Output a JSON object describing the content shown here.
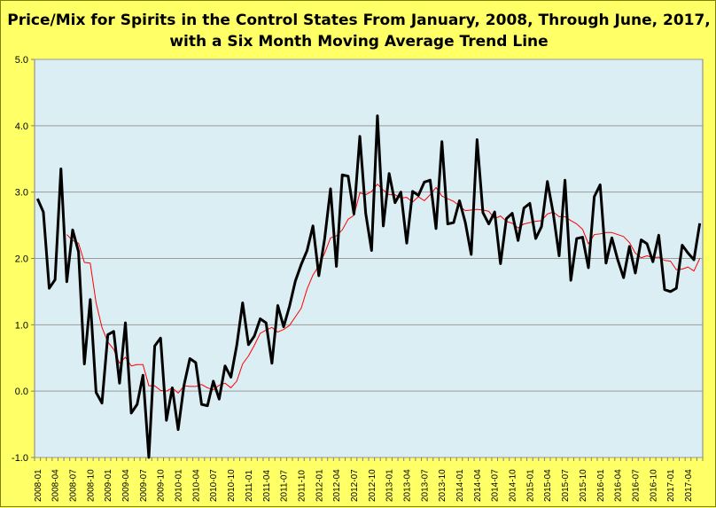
{
  "chart_data": {
    "type": "line",
    "title": "Price/Mix for Spirits in the Control States From January, 2008, Through June, 2017,",
    "subtitle": "with a Six Month Moving Average Trend Line",
    "ylim": [
      -1.0,
      5.0
    ],
    "yticks": [
      "-1.0",
      "0.0",
      "1.0",
      "2.0",
      "3.0",
      "4.0",
      "5.0"
    ],
    "x_tick_labels": [
      "2008-01",
      "2008-04",
      "2008-07",
      "2008-10",
      "2009-01",
      "2009-04",
      "2009-07",
      "2009-10",
      "2010-01",
      "2010-04",
      "2010-07",
      "2010-10",
      "2011-01",
      "2011-04",
      "2011-07",
      "2011-10",
      "2012-01",
      "2012-04",
      "2012-07",
      "2012-10",
      "2013-01",
      "2013-04",
      "2013-07",
      "2013-10",
      "2014-01",
      "2014-04",
      "2014-07",
      "2014-10",
      "2015-01",
      "2015-04",
      "2015-07",
      "2015-10",
      "2016-01",
      "2016-04",
      "2016-07",
      "2016-10",
      "2017-01",
      "2017-04"
    ],
    "grid": true,
    "plot_background": "#daeef3",
    "page_background": "#ffff66",
    "series": [
      {
        "color": "#000000",
        "values": [
          2.9,
          2.7,
          1.55,
          1.68,
          3.35,
          1.65,
          2.43,
          2.1,
          0.41,
          1.38,
          -0.02,
          -0.18,
          0.85,
          0.9,
          0.12,
          1.03,
          -0.33,
          -0.2,
          0.24,
          -1.0,
          0.68,
          0.8,
          -0.44,
          0.05,
          -0.58,
          0.09,
          0.49,
          0.43,
          -0.2,
          -0.22,
          0.15,
          -0.12,
          0.38,
          0.21,
          0.69,
          1.33,
          0.7,
          0.83,
          1.09,
          1.03,
          0.42,
          1.29,
          0.97,
          1.28,
          1.66,
          1.91,
          2.12,
          2.49,
          1.74,
          2.3,
          3.05,
          1.88,
          3.26,
          3.24,
          2.67,
          3.84,
          2.68,
          2.12,
          4.15,
          2.49,
          3.28,
          2.84,
          3.0,
          2.23,
          3.01,
          2.95,
          3.15,
          3.18,
          2.45,
          3.76,
          2.52,
          2.54,
          2.87,
          2.54,
          2.06,
          3.79,
          2.69,
          2.52,
          2.7,
          1.92,
          2.6,
          2.68,
          2.27,
          2.76,
          2.83,
          2.3,
          2.48,
          3.16,
          2.68,
          2.04,
          3.18,
          1.67,
          2.3,
          2.32,
          1.86,
          2.93,
          3.11,
          1.93,
          2.31,
          1.98,
          1.71,
          2.18,
          1.78,
          2.28,
          2.22,
          1.95,
          2.35,
          1.53,
          1.5,
          1.55,
          2.2,
          2.08,
          1.98,
          2.53
        ]
      },
      {
        "color": "#ff0000",
        "values": [
          null,
          null,
          null,
          null,
          null,
          2.36,
          2.27,
          2.23,
          1.94,
          1.93,
          1.33,
          0.96,
          0.74,
          0.63,
          0.42,
          0.51,
          0.38,
          0.4,
          0.4,
          0.08,
          0.08,
          0.01,
          0.0,
          0.05,
          -0.03,
          0.08,
          0.07,
          0.07,
          0.1,
          0.05,
          0.02,
          0.09,
          0.12,
          0.05,
          0.15,
          0.41,
          0.53,
          0.69,
          0.87,
          0.92,
          0.96,
          0.89,
          0.93,
          0.99,
          1.12,
          1.25,
          1.54,
          1.75,
          1.89,
          2.08,
          2.31,
          2.34,
          2.43,
          2.59,
          2.65,
          2.99,
          2.96,
          3.01,
          3.12,
          3.03,
          2.96,
          2.96,
          2.91,
          2.92,
          2.85,
          2.93,
          2.87,
          2.96,
          3.07,
          2.94,
          2.9,
          2.86,
          2.79,
          2.72,
          2.73,
          2.74,
          2.73,
          2.71,
          2.6,
          2.64,
          2.56,
          2.53,
          2.46,
          2.52,
          2.54,
          2.56,
          2.57,
          2.67,
          2.7,
          2.63,
          2.63,
          2.57,
          2.52,
          2.44,
          2.22,
          2.36,
          2.37,
          2.39,
          2.39,
          2.36,
          2.33,
          2.24,
          2.08,
          2.01,
          2.04,
          2.01,
          2.02,
          1.97,
          1.96,
          1.83,
          1.84,
          1.87,
          1.81,
          2.0
        ]
      }
    ]
  }
}
